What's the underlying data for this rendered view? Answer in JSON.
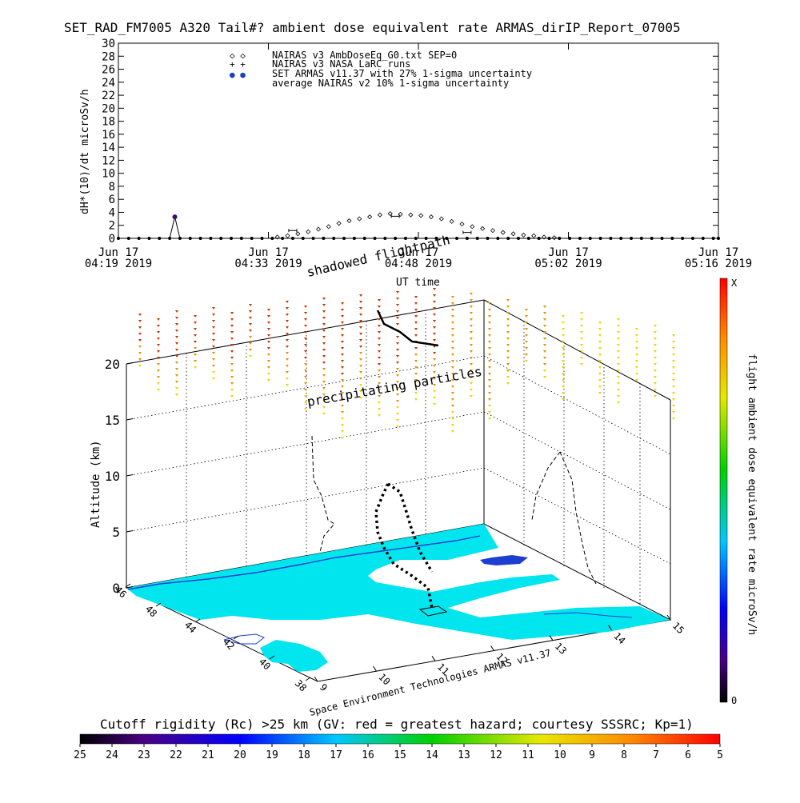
{
  "chart_data": [
    {
      "type": "scatter",
      "title": "SET_RAD_FM7005  A320 Tail#? ambient dose equivalent rate ARMAS_dirIP_Report_07005",
      "ylabel": "dH*(10)/dt microSv/h",
      "xlabel": "UT time",
      "ylim": [
        0,
        30
      ],
      "y_ticks": [
        "0",
        "2",
        "4",
        "6",
        "8",
        "10",
        "12",
        "14",
        "16",
        "18",
        "20",
        "22",
        "24",
        "26",
        "28",
        "30"
      ],
      "x_ticks": [
        {
          "date": "Jun 17",
          "time": "04:19 2019"
        },
        {
          "date": "Jun 17",
          "time": "04:33 2019"
        },
        {
          "date": "Jun 17",
          "time": "04:48 2019"
        },
        {
          "date": "Jun 17",
          "time": "05:02 2019"
        },
        {
          "date": "Jun 17",
          "time": "05:16 2019"
        }
      ],
      "legend_position": "top-left",
      "legend": [
        {
          "symbol": "◇ ◇",
          "label": "NAIRAS v3 AmbDoseEq_G0.txt SEP=0"
        },
        {
          "symbol": "+ +",
          "label": "NAIRAS v3 NASA LaRC runs"
        },
        {
          "symbol": "● ●",
          "label": "SET ARMAS v11.37 with 27% 1-sigma uncertainty",
          "color": "#1b3fb4"
        },
        {
          "symbol": "",
          "label": "average NAIRAS v2 10% 1-sigma uncertainty"
        }
      ],
      "series": [
        {
          "name": "NAIRAS v3 AmbDoseEq_G0.txt SEP=0",
          "x_minutes_utc": [
            290,
            292,
            294,
            296,
            298,
            300,
            302,
            304,
            306,
            308,
            310,
            312,
            314,
            316,
            318,
            320,
            322,
            324,
            326,
            328,
            330,
            332,
            334,
            336,
            338,
            340,
            342,
            344
          ],
          "values": [
            0.2,
            0.4,
            0.7,
            1.0,
            1.4,
            1.8,
            2.3,
            2.7,
            3.0,
            3.3,
            3.6,
            3.8,
            3.7,
            3.6,
            3.5,
            3.3,
            3.0,
            2.6,
            2.2,
            1.8,
            1.5,
            1.2,
            0.9,
            0.7,
            0.5,
            0.4,
            0.2,
            0.1
          ]
        },
        {
          "name": "SET ARMAS v11.37 with 27% 1-sigma uncertainty",
          "x_minutes_utc": [
            259,
            261,
            263,
            265,
            267,
            269,
            270,
            271,
            273,
            275,
            277,
            279,
            281,
            283,
            285,
            287,
            289,
            291,
            293,
            295,
            297,
            299,
            301,
            303,
            305,
            307,
            309,
            311,
            313,
            315,
            317,
            319,
            321,
            323,
            325,
            327,
            329,
            331,
            333,
            335,
            337,
            339,
            341,
            343,
            345,
            347,
            349,
            351,
            353,
            355,
            357,
            359,
            361,
            363,
            365,
            367,
            369,
            371,
            373,
            375,
            376
          ],
          "values": [
            0,
            0,
            0,
            0,
            0,
            0,
            3.3,
            0,
            0,
            0,
            0,
            0,
            0,
            0,
            0,
            0,
            0,
            0,
            0,
            0,
            0,
            0,
            0,
            0,
            0,
            0,
            0,
            0,
            0,
            0,
            0,
            0,
            0,
            0,
            0,
            0,
            0,
            0,
            0,
            0,
            0,
            0,
            0,
            0,
            0,
            0,
            0,
            0,
            0,
            0,
            0,
            0,
            0,
            0,
            0,
            0,
            0,
            0,
            0,
            0,
            0
          ]
        },
        {
          "name": "average NAIRAS v2 10% 1-sigma uncertainty",
          "x_minutes_utc": [
            293,
            313,
            327
          ],
          "values": [
            1.2,
            3.4,
            0.9
          ]
        }
      ]
    },
    {
      "type": "scatter",
      "kind": "3d-flightpath",
      "zlabel": "Altitude (km)",
      "zlim": [
        0,
        20
      ],
      "z_ticks": [
        "0",
        "5",
        "10",
        "15",
        "20"
      ],
      "lat_ticks": [
        "38",
        "40",
        "42",
        "44",
        "46",
        "48"
      ],
      "lon_ticks": [
        "9",
        "10",
        "11",
        "12",
        "13",
        "14",
        "15"
      ],
      "annotations": [
        "shadowed flightpath",
        "precipitating particles"
      ],
      "credit": "Space Environment Technologies ARMAS v11.37",
      "right_colorbar": {
        "label": "flight ambient dose equivalent rate microSv/h",
        "top_label": "X",
        "bottom_label": "0"
      },
      "bottom_colorbar": {
        "label": "Cutoff rigidity (Rc) >25 km (GV: red = greatest hazard; courtesy SSSRC; Kp=1)",
        "ticks": [
          "25",
          "24",
          "23",
          "22",
          "21",
          "20",
          "19",
          "18",
          "17",
          "16",
          "15",
          "14",
          "13",
          "12",
          "11",
          "10",
          "9",
          "8",
          "7",
          "6",
          "5"
        ]
      },
      "colors": {
        "sea": "#00e5ee",
        "coast": "#1d3fcf",
        "arrow_high": "#cc3300",
        "arrow_mid": "#e59100",
        "arrow_low": "#e5d800",
        "armas_point": "#3b0a6a"
      }
    }
  ]
}
